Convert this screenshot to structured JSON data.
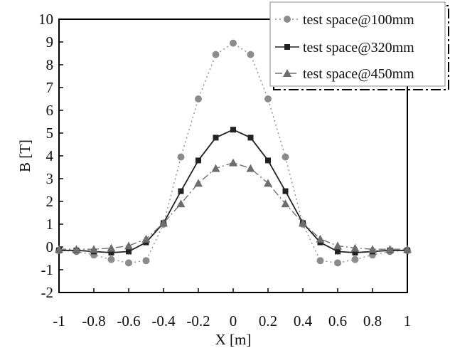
{
  "chart_data": {
    "type": "line",
    "xlabel": "X [m]",
    "ylabel": "B [T]",
    "xlim": [
      -1,
      1
    ],
    "ylim": [
      -2,
      10
    ],
    "x_ticks": [
      "-1",
      "-0.8",
      "-0.6",
      "-0.4",
      "-0.2",
      "0",
      "0.2",
      "0.4",
      "0.6",
      "0.8",
      "1"
    ],
    "y_ticks": [
      "-2",
      "-1",
      "0",
      "1",
      "2",
      "3",
      "4",
      "5",
      "6",
      "7",
      "8",
      "9",
      "10"
    ],
    "grid": false,
    "legend_position": "top-right",
    "x": [
      -1,
      -0.9,
      -0.8,
      -0.7,
      -0.6,
      -0.5,
      -0.4,
      -0.3,
      -0.2,
      -0.1,
      0,
      0.1,
      0.2,
      0.3,
      0.4,
      0.5,
      0.6,
      0.7,
      0.8,
      0.9,
      1
    ],
    "series": [
      {
        "name": "test space@100mm",
        "marker": "circle",
        "line": "dotted",
        "color": "#8c8c8c",
        "values": [
          -0.15,
          -0.2,
          -0.35,
          -0.55,
          -0.7,
          -0.6,
          1.0,
          3.95,
          6.5,
          8.45,
          8.95,
          8.45,
          6.5,
          3.95,
          1.0,
          -0.6,
          -0.7,
          -0.55,
          -0.35,
          -0.2,
          -0.15
        ]
      },
      {
        "name": "test space@320mm",
        "marker": "square",
        "line": "solid",
        "color": "#222222",
        "values": [
          -0.15,
          -0.15,
          -0.2,
          -0.25,
          -0.2,
          0.2,
          1.05,
          2.45,
          3.8,
          4.8,
          5.15,
          4.8,
          3.8,
          2.45,
          1.05,
          0.2,
          -0.2,
          -0.25,
          -0.2,
          -0.15,
          -0.15
        ]
      },
      {
        "name": "test space@450mm",
        "marker": "triangle",
        "line": "dashdot",
        "color": "#6e6e6e",
        "values": [
          -0.1,
          -0.1,
          -0.1,
          -0.05,
          0.05,
          0.35,
          1.05,
          1.9,
          2.8,
          3.45,
          3.7,
          3.45,
          2.8,
          1.9,
          1.05,
          0.35,
          0.05,
          -0.05,
          -0.1,
          -0.1,
          -0.1
        ]
      }
    ]
  }
}
